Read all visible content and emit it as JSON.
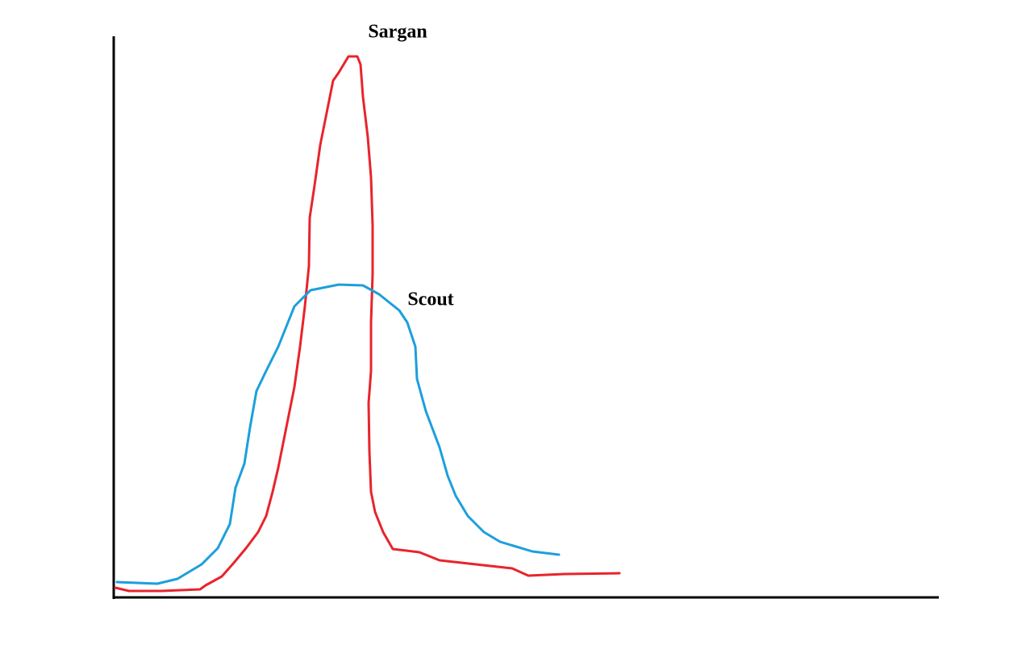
{
  "curves": [
    {
      "label": "Sargan"
    },
    {
      "label": "Scout"
    }
  ]
}
